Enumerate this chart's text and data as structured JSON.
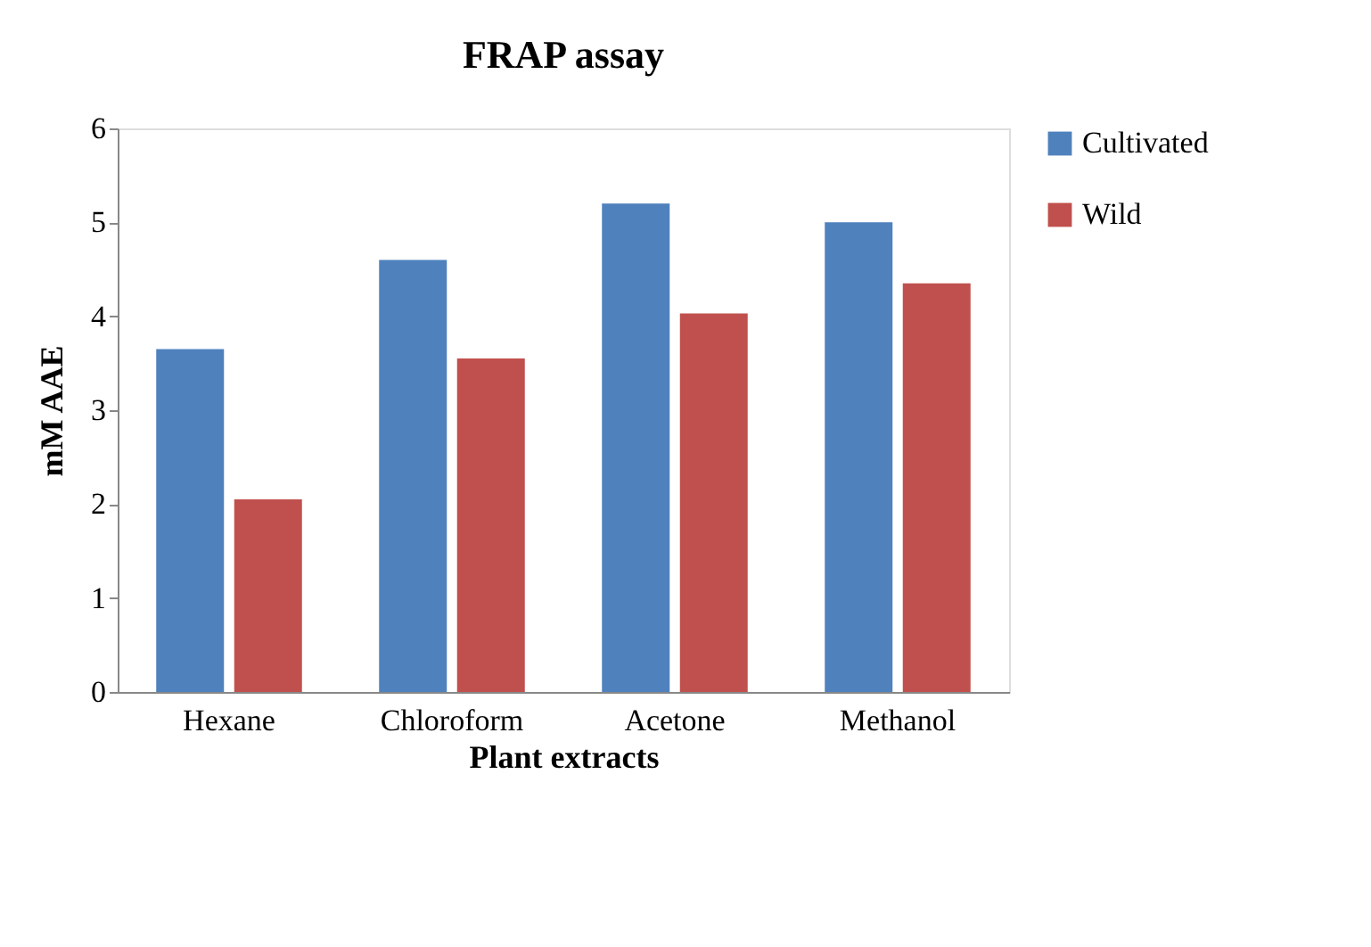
{
  "chart_data": {
    "type": "bar",
    "title": "FRAP assay",
    "xlabel": "Plant extracts",
    "ylabel": "mM  AAE",
    "categories": [
      "Hexane",
      "Chloroform",
      "Acetone",
      "Methanol"
    ],
    "series": [
      {
        "name": "Cultivated",
        "color": "#4f81bd",
        "values": [
          3.65,
          4.6,
          5.2,
          5.0
        ]
      },
      {
        "name": " Wild",
        "color": "#c0504d",
        "values": [
          2.05,
          3.55,
          4.03,
          4.35
        ]
      }
    ],
    "ylim": [
      0,
      6
    ],
    "yticks": [
      0,
      1,
      2,
      3,
      4,
      5,
      6
    ],
    "grid": false,
    "legend": "right"
  }
}
